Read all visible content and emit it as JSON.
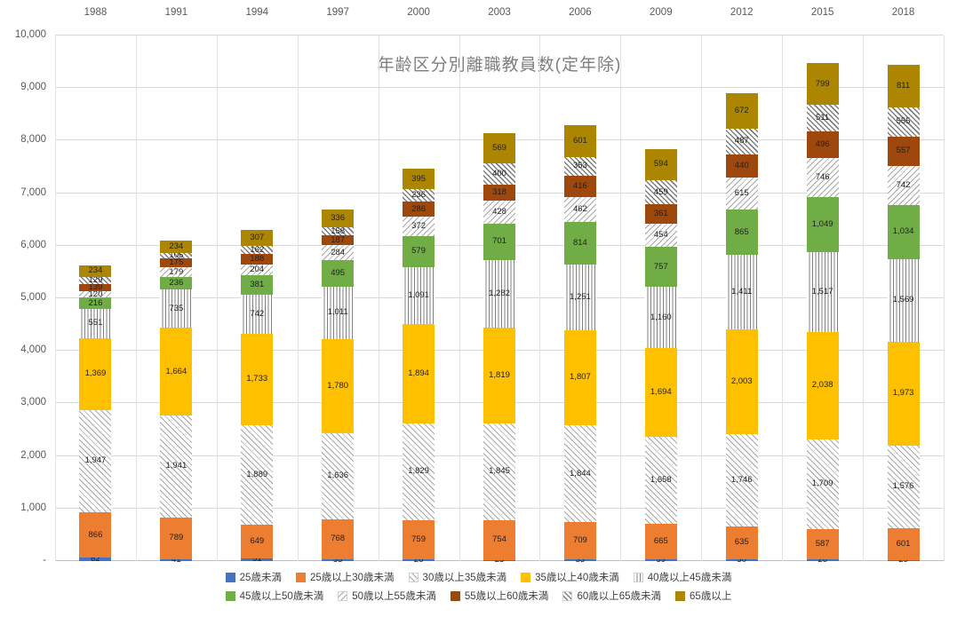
{
  "chart_data": {
    "type": "bar",
    "stacked": true,
    "title": "年齢区分別離職教員数(定年除)",
    "categories": [
      "1988",
      "1991",
      "1994",
      "1997",
      "2000",
      "2003",
      "2006",
      "2009",
      "2012",
      "2015",
      "2018"
    ],
    "series": [
      {
        "name": "25歳未満",
        "fill": "solid",
        "color": "#4472C4",
        "pattern": null,
        "values": [
          62,
          41,
          51,
          33,
          26,
          23,
          33,
          39,
          30,
          26,
          25
        ]
      },
      {
        "name": "25歳以上30歳未満",
        "fill": "solid",
        "color": "#ED7D31",
        "pattern": null,
        "values": [
          866,
          789,
          649,
          768,
          759,
          754,
          709,
          665,
          635,
          587,
          601
        ]
      },
      {
        "name": "30歳以上35歳未満",
        "fill": "pattern",
        "color": "#A6A6A6",
        "pattern": "diag-up",
        "values": [
          1947,
          1941,
          1889,
          1636,
          1829,
          1845,
          1844,
          1658,
          1746,
          1709,
          1576
        ]
      },
      {
        "name": "35歳以上40歳未満",
        "fill": "solid",
        "color": "#FFC000",
        "pattern": null,
        "values": [
          1369,
          1664,
          1733,
          1780,
          1894,
          1819,
          1807,
          1694,
          2003,
          2038,
          1973
        ]
      },
      {
        "name": "40歳以上45歳未満",
        "fill": "pattern",
        "color": "#808080",
        "pattern": "vertical",
        "values": [
          551,
          735,
          742,
          1011,
          1091,
          1282,
          1251,
          1160,
          1411,
          1517,
          1569
        ]
      },
      {
        "name": "45歳以上50歳未満",
        "fill": "solid",
        "color": "#70AD47",
        "pattern": null,
        "values": [
          216,
          236,
          381,
          495,
          579,
          701,
          814,
          757,
          865,
          1049,
          1034
        ]
      },
      {
        "name": "50歳以上55歳未満",
        "fill": "pattern",
        "color": "#A6A6A6",
        "pattern": "diag-down",
        "values": [
          120,
          179,
          204,
          284,
          372,
          428,
          462,
          454,
          615,
          746,
          742
        ]
      },
      {
        "name": "55歳以上60歳未満",
        "fill": "solid",
        "color": "#9E480E",
        "pattern": null,
        "values": [
          139,
          175,
          188,
          187,
          286,
          318,
          416,
          361,
          440,
          496,
          557
        ]
      },
      {
        "name": "60歳以上65歳未満",
        "fill": "pattern",
        "color": "#7F7F7F",
        "pattern": "diag-up-bold",
        "values": [
          129,
          106,
          162,
          158,
          236,
          400,
          353,
          459,
          487,
          511,
          555
        ]
      },
      {
        "name": "65歳以上",
        "fill": "solid",
        "color": "#AC8600",
        "pattern": null,
        "values": [
          234,
          234,
          307,
          336,
          395,
          569,
          601,
          594,
          672,
          799,
          811
        ]
      }
    ],
    "ylim": [
      0,
      10000
    ],
    "ytick_interval": 1000,
    "ytick_labels": [
      "-",
      "1,000",
      "2,000",
      "3,000",
      "4,000",
      "5,000",
      "6,000",
      "7,000",
      "8,000",
      "9,000",
      "10,000"
    ],
    "legend_position": "bottom",
    "legend_rows": [
      5,
      5
    ],
    "grid": true,
    "category_axis_position": "top"
  }
}
